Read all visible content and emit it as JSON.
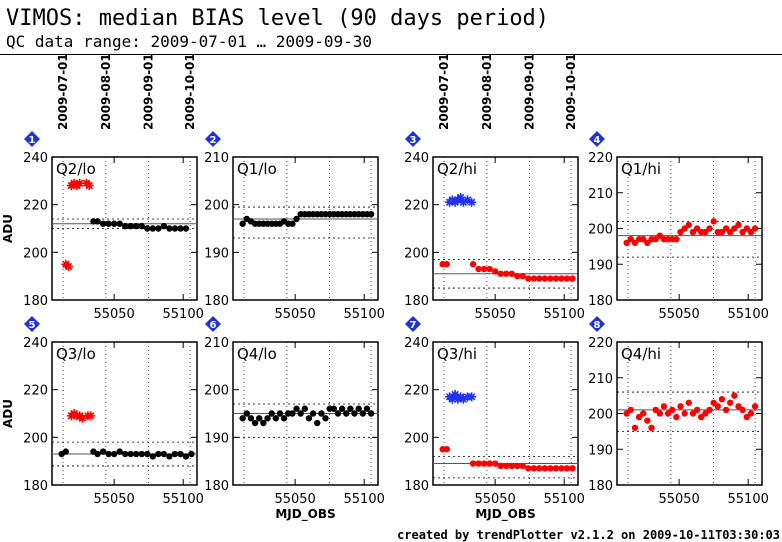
{
  "header": {
    "title": "VIMOS: median BIAS level (90 days period)",
    "subtitle": "QC data range: 2009-07-01 … 2009-09-30"
  },
  "footer": {
    "credit": "created by trendPlotter v2.1.2 on 2009-10-11T03:30:03"
  },
  "top_date_axis": {
    "labels": [
      "2009-07-01",
      "2009-08-01",
      "2009-09-01",
      "2009-10-01"
    ],
    "mjd": [
      55013,
      55044,
      55075,
      55105
    ]
  },
  "colors": {
    "black": "#000000",
    "red": "#ff0000",
    "blue": "#2233ee",
    "badge": "#1f33d8"
  },
  "chart_data": [
    {
      "type": "scatter",
      "index": "1",
      "label": "Q2/lo",
      "xlabel": "",
      "ylabel": "ADU",
      "xlim": [
        55005,
        55110
      ],
      "ylim": [
        180,
        240
      ],
      "yticks": [
        180,
        200,
        220,
        240
      ],
      "xticks": [
        55050,
        55100
      ],
      "ref_line": 212,
      "dotted_lines": [
        210,
        214
      ],
      "series": [
        {
          "name": "",
          "color": "red",
          "marker": "star",
          "x": [
            55015,
            55017,
            55019,
            55021,
            55023,
            55025,
            55030,
            55032
          ],
          "y": [
            195,
            194,
            228,
            229,
            228,
            229,
            229,
            228
          ]
        },
        {
          "name": "",
          "color": "black",
          "marker": "dot",
          "x": [
            55035,
            55038,
            55042,
            55046,
            55050,
            55054,
            55058,
            55062,
            55066,
            55070,
            55074,
            55078,
            55082,
            55086,
            55090,
            55094,
            55098,
            55102
          ],
          "y": [
            213,
            213,
            212,
            212,
            212,
            212,
            211,
            211,
            211,
            211,
            210,
            210,
            210,
            211,
            210,
            210,
            210,
            210
          ]
        }
      ]
    },
    {
      "type": "scatter",
      "index": "2",
      "label": "Q1/lo",
      "xlabel": "",
      "ylabel": "",
      "xlim": [
        55005,
        55110
      ],
      "ylim": [
        180,
        210
      ],
      "yticks": [
        180,
        190,
        200,
        210
      ],
      "xticks": [
        55050,
        55100
      ],
      "ref_line": 197,
      "dotted_lines": [
        193,
        199.5
      ],
      "series": [
        {
          "name": "",
          "color": "black",
          "marker": "dot",
          "x": [
            55012,
            55015,
            55018,
            55021,
            55024,
            55027,
            55030,
            55033,
            55036,
            55039,
            55042,
            55045,
            55048,
            55051,
            55054,
            55057,
            55060,
            55063,
            55066,
            55069,
            55072,
            55075,
            55078,
            55081,
            55084,
            55087,
            55090,
            55093,
            55096,
            55099,
            55102,
            55105
          ],
          "y": [
            196,
            197,
            196.5,
            196,
            196,
            196,
            196,
            196,
            196,
            196,
            196.5,
            196,
            196,
            197,
            198,
            198,
            198,
            198,
            198,
            198,
            198,
            198,
            198,
            198,
            198,
            198,
            198,
            198,
            198,
            198,
            198,
            198
          ]
        }
      ]
    },
    {
      "type": "scatter",
      "index": "3",
      "label": "Q2/hi",
      "xlabel": "",
      "ylabel": "",
      "xlim": [
        55005,
        55110
      ],
      "ylim": [
        180,
        240
      ],
      "yticks": [
        180,
        200,
        220,
        240
      ],
      "xticks": [
        55050,
        55100
      ],
      "ref_line": 191,
      "dotted_lines": [
        185,
        197
      ],
      "series": [
        {
          "name": "",
          "color": "red",
          "marker": "dot",
          "x": [
            55012,
            55015,
            55034,
            55038,
            55042,
            55046,
            55050,
            55054,
            55058,
            55062,
            55066,
            55070,
            55074,
            55078,
            55082,
            55086,
            55090,
            55094,
            55098,
            55102,
            55106
          ],
          "y": [
            195,
            195,
            195,
            193,
            193,
            193,
            192,
            191,
            191,
            191,
            190,
            190,
            189,
            189,
            189,
            189,
            189,
            189,
            189,
            189,
            189
          ]
        },
        {
          "name": "",
          "color": "blue",
          "marker": "star",
          "x": [
            55017,
            55019,
            55021,
            55023,
            55025,
            55027,
            55030,
            55033
          ],
          "y": [
            221,
            222,
            221,
            222,
            223,
            221,
            222,
            221
          ]
        }
      ]
    },
    {
      "type": "scatter",
      "index": "4",
      "label": "Q1/hi",
      "xlabel": "",
      "ylabel": "",
      "xlim": [
        55005,
        55110
      ],
      "ylim": [
        180,
        220
      ],
      "yticks": [
        180,
        190,
        200,
        210,
        220
      ],
      "xticks": [
        55050,
        55100
      ],
      "ref_line": 198,
      "dotted_lines": [
        192,
        202
      ],
      "series": [
        {
          "name": "",
          "color": "red",
          "marker": "dot",
          "x": [
            55012,
            55015,
            55018,
            55021,
            55024,
            55027,
            55030,
            55033,
            55036,
            55039,
            55042,
            55045,
            55048,
            55051,
            55054,
            55057,
            55060,
            55063,
            55066,
            55069,
            55072,
            55075,
            55078,
            55081,
            55084,
            55087,
            55090,
            55093,
            55096,
            55099,
            55102,
            55105
          ],
          "y": [
            196,
            197,
            196,
            197,
            197,
            196,
            197,
            197,
            198,
            197,
            197,
            197,
            197,
            199,
            200,
            201,
            199,
            200,
            199,
            199,
            200,
            202,
            199,
            199,
            200,
            199,
            200,
            201,
            199,
            200,
            199,
            200
          ]
        }
      ]
    },
    {
      "type": "scatter",
      "index": "5",
      "label": "Q3/lo",
      "xlabel": "",
      "ylabel": "ADU",
      "xlim": [
        55005,
        55110
      ],
      "ylim": [
        180,
        240
      ],
      "yticks": [
        180,
        200,
        220,
        240
      ],
      "xticks": [
        55050,
        55100
      ],
      "ref_line": 193,
      "dotted_lines": [
        188,
        198
      ],
      "series": [
        {
          "name": "",
          "color": "red",
          "marker": "star",
          "x": [
            55019,
            55021,
            55023,
            55025,
            55027,
            55031,
            55033
          ],
          "y": [
            209,
            210,
            209,
            209,
            208,
            209,
            209
          ]
        },
        {
          "name": "",
          "color": "black",
          "marker": "dot",
          "x": [
            55012,
            55015,
            55035,
            55038,
            55042,
            55046,
            55050,
            55054,
            55058,
            55062,
            55066,
            55070,
            55074,
            55078,
            55082,
            55086,
            55090,
            55094,
            55098,
            55102,
            55106
          ],
          "y": [
            193,
            194,
            194,
            193,
            194,
            193,
            193,
            194,
            193,
            193,
            193,
            193,
            193,
            192,
            193,
            193,
            192,
            193,
            193,
            192,
            193
          ]
        }
      ]
    },
    {
      "type": "scatter",
      "index": "6",
      "label": "Q4/lo",
      "xlabel": "MJD_OBS",
      "ylabel": "",
      "xlim": [
        55005,
        55110
      ],
      "ylim": [
        180,
        210
      ],
      "yticks": [
        180,
        190,
        200,
        210
      ],
      "xticks": [
        55050,
        55100
      ],
      "ref_line": 195,
      "dotted_lines": [
        190,
        197
      ],
      "series": [
        {
          "name": "",
          "color": "black",
          "marker": "dot",
          "x": [
            55012,
            55015,
            55018,
            55021,
            55024,
            55027,
            55030,
            55033,
            55036,
            55039,
            55042,
            55045,
            55048,
            55051,
            55054,
            55057,
            55060,
            55063,
            55066,
            55069,
            55072,
            55075,
            55078,
            55081,
            55084,
            55087,
            55090,
            55093,
            55096,
            55099,
            55102,
            55105
          ],
          "y": [
            194,
            195,
            194,
            193,
            194,
            193,
            194,
            195,
            194,
            195,
            194,
            195,
            195,
            196,
            195,
            196,
            194,
            195,
            193,
            195,
            194,
            196,
            196,
            195,
            196,
            195,
            196,
            195,
            196,
            195,
            196,
            195
          ]
        }
      ]
    },
    {
      "type": "scatter",
      "index": "7",
      "label": "Q3/hi",
      "xlabel": "MJD_OBS",
      "ylabel": "",
      "xlim": [
        55005,
        55110
      ],
      "ylim": [
        180,
        240
      ],
      "yticks": [
        180,
        200,
        220,
        240
      ],
      "xticks": [
        55050,
        55100
      ],
      "ref_line": 189,
      "dotted_lines": [
        183,
        192
      ],
      "series": [
        {
          "name": "",
          "color": "red",
          "marker": "dot",
          "x": [
            55012,
            55015,
            55034,
            55038,
            55042,
            55046,
            55050,
            55054,
            55058,
            55062,
            55066,
            55070,
            55074,
            55078,
            55082,
            55086,
            55090,
            55094,
            55098,
            55102,
            55106
          ],
          "y": [
            195,
            195,
            189,
            189,
            189,
            189,
            189,
            188,
            188,
            188,
            188,
            188,
            187,
            187,
            187,
            187,
            187,
            187,
            187,
            187,
            187
          ]
        },
        {
          "name": "",
          "color": "blue",
          "marker": "star",
          "x": [
            55017,
            55019,
            55021,
            55023,
            55025,
            55027,
            55030,
            55033
          ],
          "y": [
            217,
            216,
            218,
            216,
            217,
            216,
            217,
            217
          ]
        }
      ]
    },
    {
      "type": "scatter",
      "index": "8",
      "label": "Q4/hi",
      "xlabel": "",
      "ylabel": "",
      "xlim": [
        55005,
        55110
      ],
      "ylim": [
        180,
        220
      ],
      "yticks": [
        180,
        190,
        200,
        210,
        220
      ],
      "xticks": [
        55050,
        55100
      ],
      "ref_line": 201,
      "dotted_lines": [
        195,
        206
      ],
      "series": [
        {
          "name": "",
          "color": "red",
          "marker": "dot",
          "x": [
            55012,
            55015,
            55018,
            55021,
            55024,
            55027,
            55030,
            55033,
            55036,
            55039,
            55042,
            55045,
            55048,
            55051,
            55054,
            55057,
            55060,
            55063,
            55066,
            55069,
            55072,
            55075,
            55078,
            55081,
            55084,
            55087,
            55090,
            55093,
            55096,
            55099,
            55102,
            55105
          ],
          "y": [
            200,
            201,
            196,
            199,
            200,
            198,
            196,
            201,
            200,
            202,
            200,
            201,
            199,
            202,
            200,
            203,
            200,
            201,
            199,
            200,
            201,
            203,
            202,
            204,
            201,
            203,
            205,
            202,
            201,
            199,
            200,
            202
          ]
        }
      ]
    }
  ]
}
